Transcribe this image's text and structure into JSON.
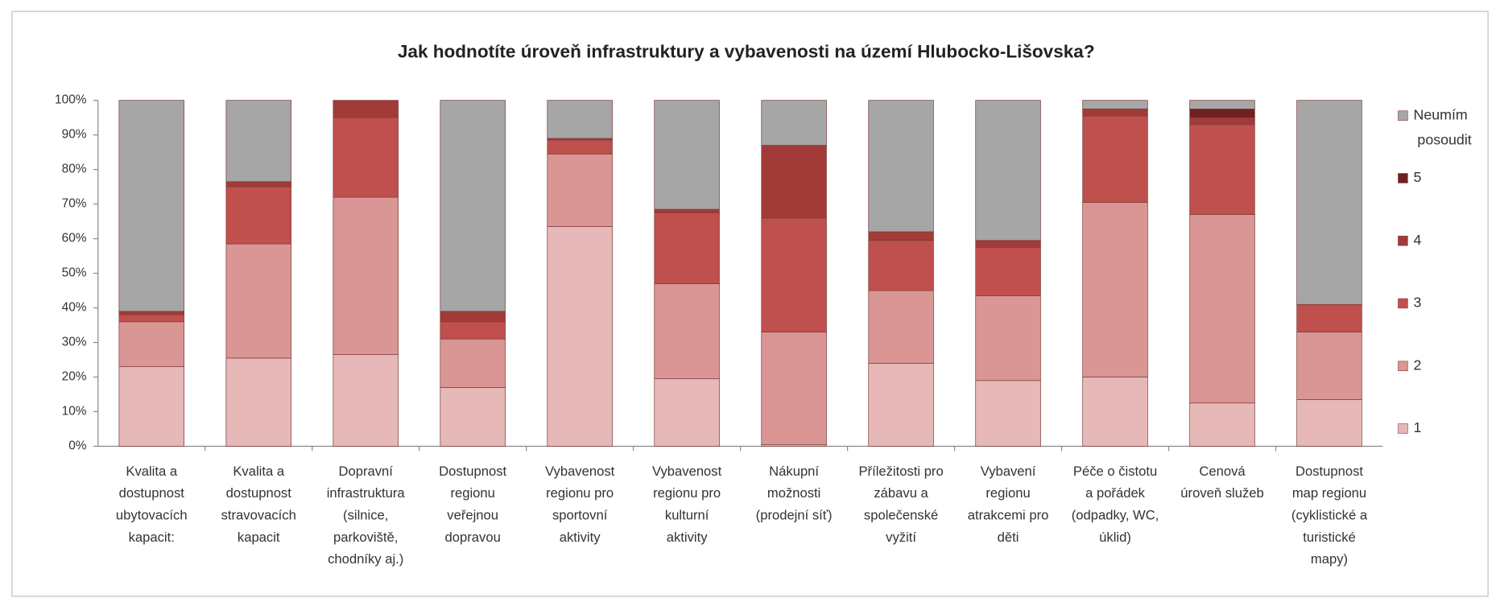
{
  "chart_data": {
    "type": "stacked_bar_percent",
    "title": "Jak hodnotíte úroveň infrastruktury a vybavenosti na území Hlubocko-Lišovska?",
    "categories": [
      [
        "Kvalita a",
        "dostupnost",
        "ubytovacích",
        "kapacit:"
      ],
      [
        "Kvalita a",
        "dostupnost",
        "stravovacích",
        "kapacit"
      ],
      [
        "Dopravní",
        "infrastruktura",
        "(silnice,",
        "parkoviště,",
        "chodníky aj.)"
      ],
      [
        "Dostupnost",
        "regionu",
        "veřejnou",
        "dopravou"
      ],
      [
        "Vybavenost",
        "regionu pro",
        "sportovní",
        "aktivity"
      ],
      [
        "Vybavenost",
        "regionu pro",
        "kulturní",
        "aktivity"
      ],
      [
        "Nákupní",
        "možnosti",
        "(prodejní síť)"
      ],
      [
        "Příležitosti pro",
        "zábavu a",
        "společenské",
        "vyžití"
      ],
      [
        "Vybavení",
        "regionu",
        "atrakcemi pro",
        "děti"
      ],
      [
        "Péče o čistotu",
        "a pořádek",
        "(odpadky, WC,",
        "úklid)"
      ],
      [
        "Cenová",
        "úroveň služeb"
      ],
      [
        "Dostupnost",
        "map regionu",
        "(cyklistické a",
        "turistické",
        "mapy)"
      ]
    ],
    "series": [
      {
        "name": "1",
        "color": "#e6b8b7",
        "values": [
          23,
          25.5,
          26.5,
          17,
          63.5,
          19.5,
          0.5,
          24,
          19,
          20,
          12.5,
          13.5
        ]
      },
      {
        "name": "2",
        "color": "#d99694",
        "values": [
          13,
          33,
          45.5,
          14,
          21,
          27.5,
          32.5,
          21,
          24.5,
          50.5,
          54.5,
          19.5
        ]
      },
      {
        "name": "3",
        "color": "#c0504d",
        "values": [
          2,
          16.5,
          23,
          5,
          4,
          20.5,
          33,
          14.5,
          14,
          25,
          26,
          8
        ]
      },
      {
        "name": "4",
        "color": "#a23b38",
        "values": [
          1,
          1.5,
          5,
          3,
          0.5,
          1,
          21,
          2.5,
          2,
          2,
          2,
          0
        ]
      },
      {
        "name": "5",
        "color": "#6f2120",
        "values": [
          0,
          0,
          0,
          0,
          0,
          0,
          0,
          0,
          0,
          0,
          2.5,
          0
        ]
      },
      {
        "name": "Neumím posoudit",
        "color": "#a6a6a6",
        "values": [
          61,
          23.5,
          0,
          61,
          11,
          31.5,
          13,
          38,
          40.5,
          2.5,
          2.5,
          59
        ]
      }
    ],
    "ylim": [
      0,
      100
    ],
    "yticks": [
      {
        "value": 0,
        "label": "0%"
      },
      {
        "value": 10,
        "label": "10%"
      },
      {
        "value": 20,
        "label": "20%"
      },
      {
        "value": 30,
        "label": "30%"
      },
      {
        "value": 40,
        "label": "40%"
      },
      {
        "value": 50,
        "label": "50%"
      },
      {
        "value": 60,
        "label": "60%"
      },
      {
        "value": 70,
        "label": "70%"
      },
      {
        "value": 80,
        "label": "80%"
      },
      {
        "value": 90,
        "label": "90%"
      },
      {
        "value": 100,
        "label": "100%"
      }
    ],
    "grid": false,
    "legend": "right"
  }
}
